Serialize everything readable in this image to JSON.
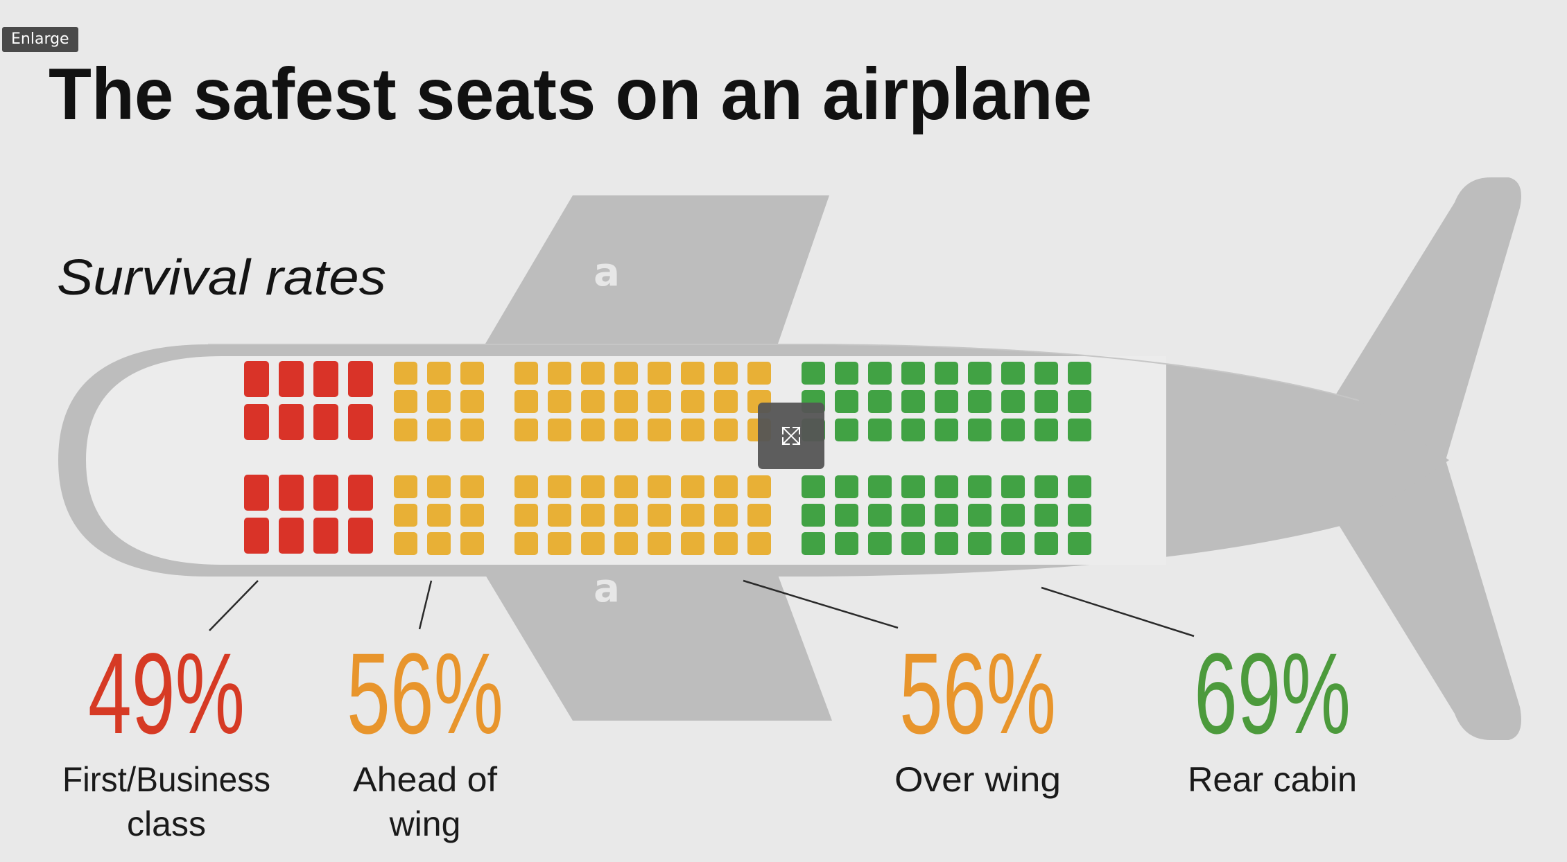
{
  "ui": {
    "enlarge_label": "Enlarge",
    "expand_icon": "expand-arrows-icon"
  },
  "infographic": {
    "title": "The safest seats on an airplane",
    "subtitle": "Survival rates",
    "colors": {
      "first_business": "#d93328",
      "ahead_of_wing": "#e8b036",
      "over_wing": "#e8b036",
      "rear_cabin": "#41a244",
      "stat_red": "#d63a24",
      "stat_orange": "#e8952c",
      "stat_green": "#4c9a3c",
      "airplane_body": "#bcbcbc",
      "cabin_floor": "#ececec"
    },
    "watermark_glyph": "a",
    "sections": [
      {
        "key": "first_business",
        "rate": "49%",
        "label_lines": [
          "First/Business",
          "class"
        ]
      },
      {
        "key": "ahead_of_wing",
        "rate": "56%",
        "label_lines": [
          "Ahead of",
          "wing"
        ]
      },
      {
        "key": "over_wing",
        "rate": "56%",
        "label_lines": [
          "Over wing"
        ]
      },
      {
        "key": "rear_cabin",
        "rate": "69%",
        "label_lines": [
          "Rear cabin"
        ]
      }
    ]
  }
}
